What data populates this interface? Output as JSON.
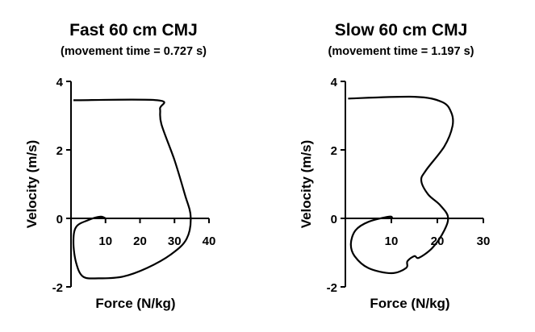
{
  "chart_data": [
    {
      "type": "line",
      "title": "Fast 60 cm CMJ",
      "subtitle": "(movement time = 0.727 s)",
      "xlabel": "Force (N/kg)",
      "ylabel": "Velocity (m/s)",
      "xlim": [
        0,
        40
      ],
      "ylim": [
        -2,
        4
      ],
      "xticks": [
        "10",
        "20",
        "30",
        "40"
      ],
      "yticks": [
        "-2",
        "0",
        "2",
        "4"
      ],
      "grid": false,
      "series": [
        {
          "x": [
            0.7,
            25,
            25.8,
            26.2,
            30,
            33,
            34.7,
            33.5,
            29,
            22,
            15,
            8,
            3.5,
            1.5,
            0.7,
            1.5,
            5,
            8.5,
            10
          ],
          "y": [
            3.45,
            3.45,
            3.2,
            2.75,
            1.7,
            0.7,
            0.05,
            -0.6,
            -1.05,
            -1.45,
            -1.7,
            -1.75,
            -1.7,
            -1.3,
            -0.7,
            -0.25,
            -0.05,
            0.05,
            0.0
          ]
        }
      ]
    },
    {
      "type": "line",
      "title": "Slow 60 cm CMJ",
      "subtitle": "(movement time = 1.197 s)",
      "xlabel": "Force (N/kg)",
      "ylabel": "Velocity (m/s)",
      "xlim": [
        0,
        30
      ],
      "ylim": [
        -2,
        4
      ],
      "xticks": [
        "10",
        "20",
        "30"
      ],
      "yticks": [
        "-2",
        "0",
        "2",
        "4"
      ],
      "grid": false,
      "series": [
        {
          "x": [
            0.6,
            15,
            21,
            23,
            23.3,
            21.5,
            17.5,
            16.5,
            18,
            20.5,
            22.3,
            21.5,
            19,
            16,
            15,
            13.5,
            13.2,
            10,
            5,
            2,
            1.2,
            2.2,
            5,
            9.5,
            10.2
          ],
          "y": [
            3.5,
            3.55,
            3.4,
            3.1,
            2.7,
            2.1,
            1.4,
            1.1,
            0.7,
            0.4,
            0.05,
            -0.35,
            -0.85,
            -1.15,
            -1.1,
            -1.25,
            -1.45,
            -1.6,
            -1.45,
            -1.1,
            -0.75,
            -0.35,
            -0.1,
            0.05,
            0.0
          ]
        }
      ]
    }
  ]
}
